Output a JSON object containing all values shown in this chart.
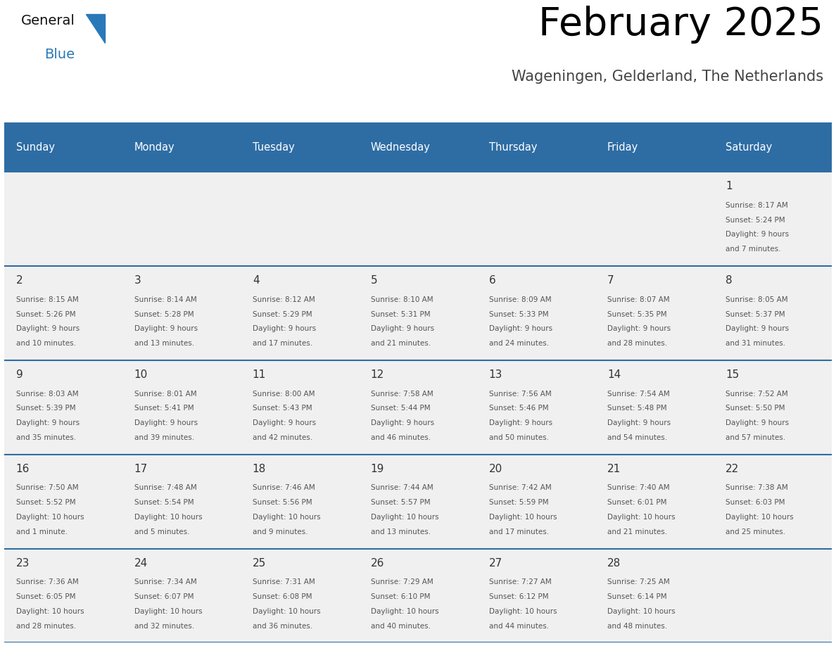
{
  "title": "February 2025",
  "subtitle": "Wageningen, Gelderland, The Netherlands",
  "header_bg": "#2E6DA4",
  "header_text": "#FFFFFF",
  "cell_bg": "#F0F0F0",
  "border_color": "#2E6DA4",
  "day_headers": [
    "Sunday",
    "Monday",
    "Tuesday",
    "Wednesday",
    "Thursday",
    "Friday",
    "Saturday"
  ],
  "title_color": "#000000",
  "subtitle_color": "#444444",
  "day_num_color": "#333333",
  "cell_text_color": "#555555",
  "logo_general_color": "#111111",
  "logo_blue_color": "#2979B8",
  "weeks": [
    [
      {
        "day": "",
        "lines": []
      },
      {
        "day": "",
        "lines": []
      },
      {
        "day": "",
        "lines": []
      },
      {
        "day": "",
        "lines": []
      },
      {
        "day": "",
        "lines": []
      },
      {
        "day": "",
        "lines": []
      },
      {
        "day": "1",
        "lines": [
          "Sunrise: 8:17 AM",
          "Sunset: 5:24 PM",
          "Daylight: 9 hours",
          "and 7 minutes."
        ]
      }
    ],
    [
      {
        "day": "2",
        "lines": [
          "Sunrise: 8:15 AM",
          "Sunset: 5:26 PM",
          "Daylight: 9 hours",
          "and 10 minutes."
        ]
      },
      {
        "day": "3",
        "lines": [
          "Sunrise: 8:14 AM",
          "Sunset: 5:28 PM",
          "Daylight: 9 hours",
          "and 13 minutes."
        ]
      },
      {
        "day": "4",
        "lines": [
          "Sunrise: 8:12 AM",
          "Sunset: 5:29 PM",
          "Daylight: 9 hours",
          "and 17 minutes."
        ]
      },
      {
        "day": "5",
        "lines": [
          "Sunrise: 8:10 AM",
          "Sunset: 5:31 PM",
          "Daylight: 9 hours",
          "and 21 minutes."
        ]
      },
      {
        "day": "6",
        "lines": [
          "Sunrise: 8:09 AM",
          "Sunset: 5:33 PM",
          "Daylight: 9 hours",
          "and 24 minutes."
        ]
      },
      {
        "day": "7",
        "lines": [
          "Sunrise: 8:07 AM",
          "Sunset: 5:35 PM",
          "Daylight: 9 hours",
          "and 28 minutes."
        ]
      },
      {
        "day": "8",
        "lines": [
          "Sunrise: 8:05 AM",
          "Sunset: 5:37 PM",
          "Daylight: 9 hours",
          "and 31 minutes."
        ]
      }
    ],
    [
      {
        "day": "9",
        "lines": [
          "Sunrise: 8:03 AM",
          "Sunset: 5:39 PM",
          "Daylight: 9 hours",
          "and 35 minutes."
        ]
      },
      {
        "day": "10",
        "lines": [
          "Sunrise: 8:01 AM",
          "Sunset: 5:41 PM",
          "Daylight: 9 hours",
          "and 39 minutes."
        ]
      },
      {
        "day": "11",
        "lines": [
          "Sunrise: 8:00 AM",
          "Sunset: 5:43 PM",
          "Daylight: 9 hours",
          "and 42 minutes."
        ]
      },
      {
        "day": "12",
        "lines": [
          "Sunrise: 7:58 AM",
          "Sunset: 5:44 PM",
          "Daylight: 9 hours",
          "and 46 minutes."
        ]
      },
      {
        "day": "13",
        "lines": [
          "Sunrise: 7:56 AM",
          "Sunset: 5:46 PM",
          "Daylight: 9 hours",
          "and 50 minutes."
        ]
      },
      {
        "day": "14",
        "lines": [
          "Sunrise: 7:54 AM",
          "Sunset: 5:48 PM",
          "Daylight: 9 hours",
          "and 54 minutes."
        ]
      },
      {
        "day": "15",
        "lines": [
          "Sunrise: 7:52 AM",
          "Sunset: 5:50 PM",
          "Daylight: 9 hours",
          "and 57 minutes."
        ]
      }
    ],
    [
      {
        "day": "16",
        "lines": [
          "Sunrise: 7:50 AM",
          "Sunset: 5:52 PM",
          "Daylight: 10 hours",
          "and 1 minute."
        ]
      },
      {
        "day": "17",
        "lines": [
          "Sunrise: 7:48 AM",
          "Sunset: 5:54 PM",
          "Daylight: 10 hours",
          "and 5 minutes."
        ]
      },
      {
        "day": "18",
        "lines": [
          "Sunrise: 7:46 AM",
          "Sunset: 5:56 PM",
          "Daylight: 10 hours",
          "and 9 minutes."
        ]
      },
      {
        "day": "19",
        "lines": [
          "Sunrise: 7:44 AM",
          "Sunset: 5:57 PM",
          "Daylight: 10 hours",
          "and 13 minutes."
        ]
      },
      {
        "day": "20",
        "lines": [
          "Sunrise: 7:42 AM",
          "Sunset: 5:59 PM",
          "Daylight: 10 hours",
          "and 17 minutes."
        ]
      },
      {
        "day": "21",
        "lines": [
          "Sunrise: 7:40 AM",
          "Sunset: 6:01 PM",
          "Daylight: 10 hours",
          "and 21 minutes."
        ]
      },
      {
        "day": "22",
        "lines": [
          "Sunrise: 7:38 AM",
          "Sunset: 6:03 PM",
          "Daylight: 10 hours",
          "and 25 minutes."
        ]
      }
    ],
    [
      {
        "day": "23",
        "lines": [
          "Sunrise: 7:36 AM",
          "Sunset: 6:05 PM",
          "Daylight: 10 hours",
          "and 28 minutes."
        ]
      },
      {
        "day": "24",
        "lines": [
          "Sunrise: 7:34 AM",
          "Sunset: 6:07 PM",
          "Daylight: 10 hours",
          "and 32 minutes."
        ]
      },
      {
        "day": "25",
        "lines": [
          "Sunrise: 7:31 AM",
          "Sunset: 6:08 PM",
          "Daylight: 10 hours",
          "and 36 minutes."
        ]
      },
      {
        "day": "26",
        "lines": [
          "Sunrise: 7:29 AM",
          "Sunset: 6:10 PM",
          "Daylight: 10 hours",
          "and 40 minutes."
        ]
      },
      {
        "day": "27",
        "lines": [
          "Sunrise: 7:27 AM",
          "Sunset: 6:12 PM",
          "Daylight: 10 hours",
          "and 44 minutes."
        ]
      },
      {
        "day": "28",
        "lines": [
          "Sunrise: 7:25 AM",
          "Sunset: 6:14 PM",
          "Daylight: 10 hours",
          "and 48 minutes."
        ]
      },
      {
        "day": "",
        "lines": []
      }
    ]
  ]
}
